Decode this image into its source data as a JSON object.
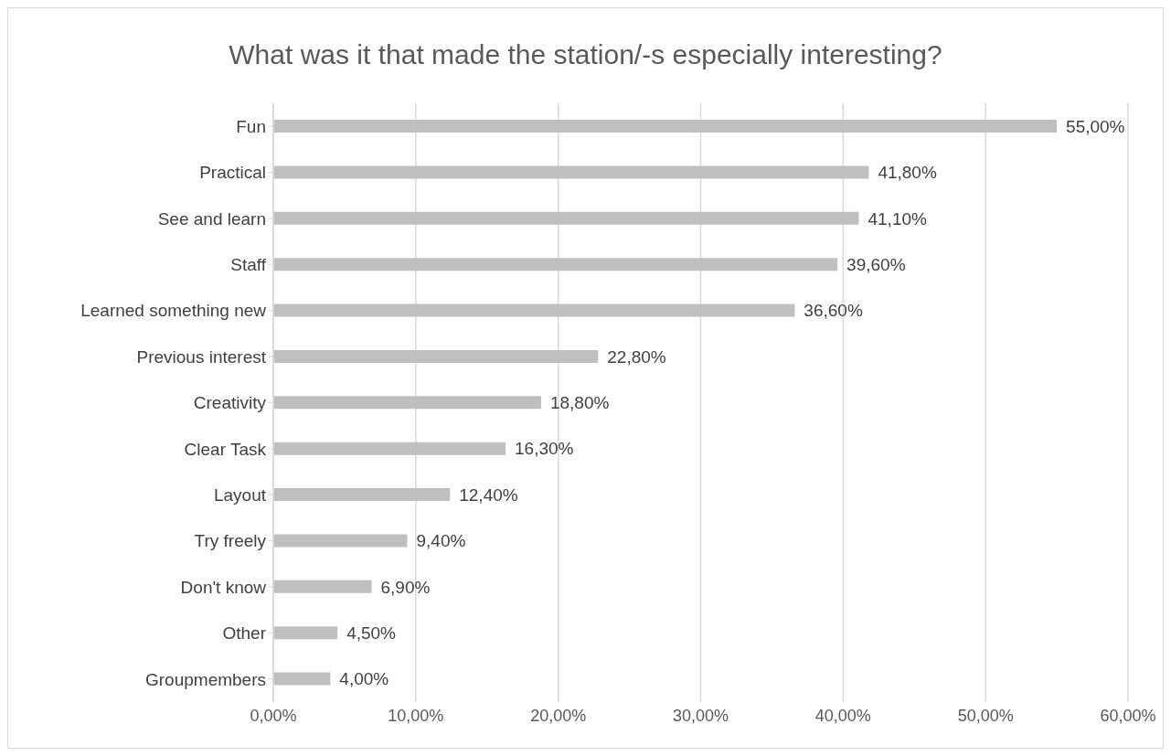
{
  "chart_data": {
    "type": "bar",
    "orientation": "horizontal",
    "title": "What was it that made the station/-s especially interesting?",
    "categories": [
      "Fun",
      "Practical",
      "See and learn",
      "Staff",
      "Learned something new",
      "Previous interest",
      "Creativity",
      "Clear Task",
      "Layout",
      "Try freely",
      "Don't know",
      "Other",
      "Groupmembers"
    ],
    "values": [
      55.0,
      41.8,
      41.1,
      39.6,
      36.6,
      22.8,
      18.8,
      16.3,
      12.4,
      9.4,
      6.9,
      4.5,
      4.0
    ],
    "value_labels": [
      "55,00%",
      "41,80%",
      "41,10%",
      "39,60%",
      "36,60%",
      "22,80%",
      "18,80%",
      "16,30%",
      "12,40%",
      "9,40%",
      "6,90%",
      "4,50%",
      "4,00%"
    ],
    "color": "#bfbfbf",
    "xlim": [
      0,
      60
    ],
    "xticks": [
      {
        "value": 0,
        "label": "0,00%"
      },
      {
        "value": 10,
        "label": "10,00%"
      },
      {
        "value": 20,
        "label": "20,00%"
      },
      {
        "value": 30,
        "label": "30,00%"
      },
      {
        "value": 40,
        "label": "40,00%"
      },
      {
        "value": 50,
        "label": "50,00%"
      },
      {
        "value": 60,
        "label": "60,00%"
      }
    ],
    "grid": "x"
  }
}
